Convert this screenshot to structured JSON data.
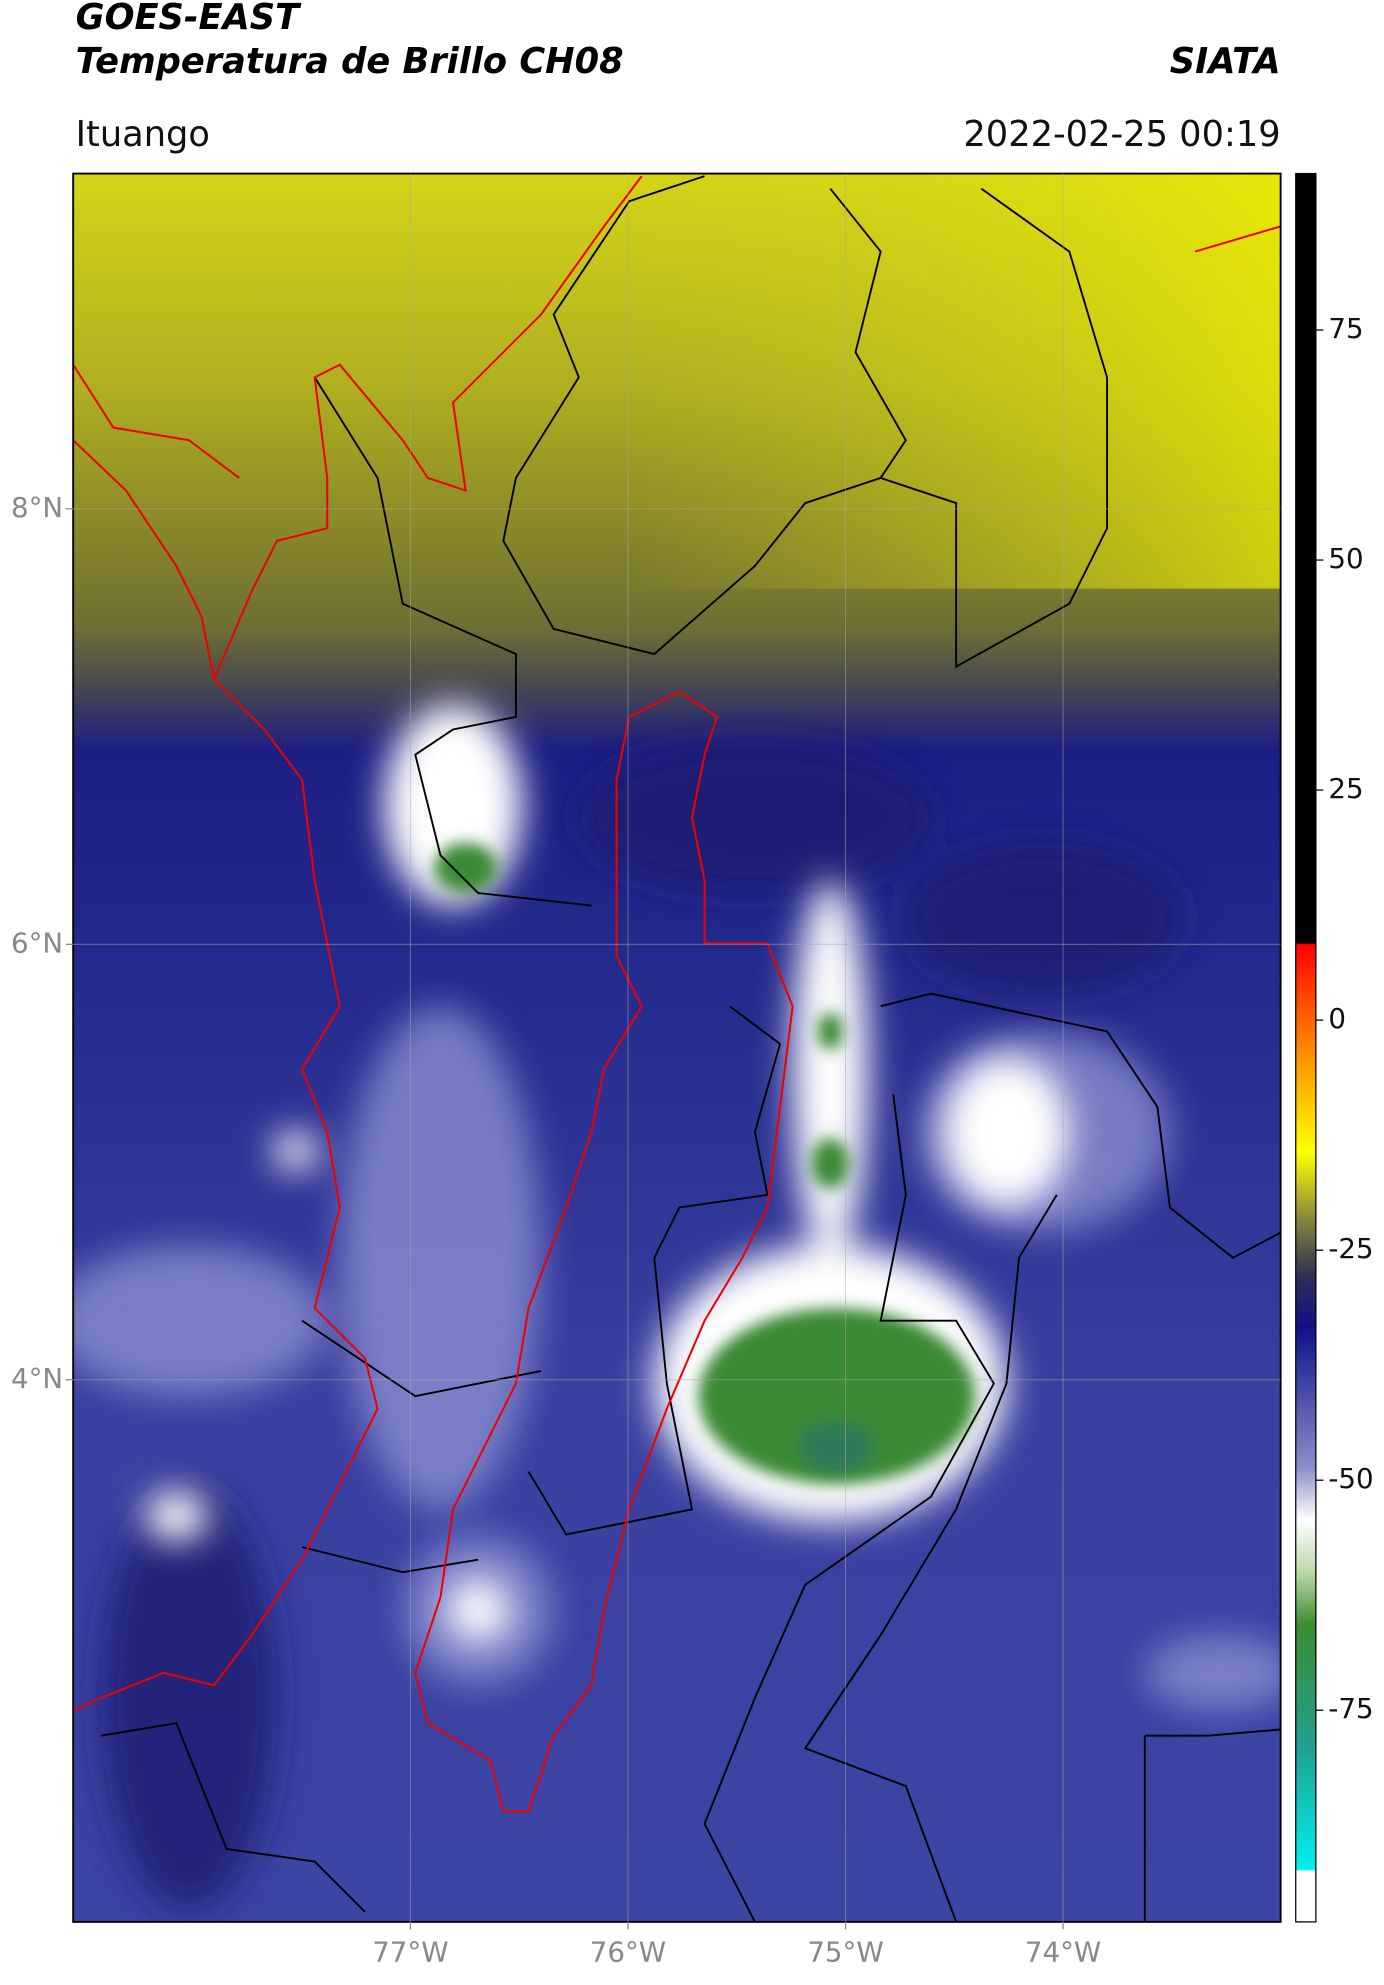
{
  "title": "GOES-EAST",
  "subtitle": "Temperatura de Brillo CH08",
  "source": "SIATA",
  "region": "Ituango",
  "timestamp": "2022-02-25 00:19",
  "map": {
    "xlim": [
      -78.55,
      -73.0
    ],
    "ylim": [
      1.51,
      9.54
    ],
    "xticks": [
      {
        "value": -77,
        "label": "77°W"
      },
      {
        "value": -76,
        "label": "76°W"
      },
      {
        "value": -75,
        "label": "75°W"
      },
      {
        "value": -74,
        "label": "74°W"
      }
    ],
    "yticks": [
      {
        "value": 8,
        "label": "8°N"
      },
      {
        "value": 6,
        "label": "6°N"
      },
      {
        "value": 4,
        "label": "4°N"
      }
    ],
    "grid": true
  },
  "colorbar": {
    "lim": [
      -98,
      92
    ],
    "ticks": [
      75,
      50,
      25,
      0,
      -25,
      -50,
      -75
    ]
  }
}
